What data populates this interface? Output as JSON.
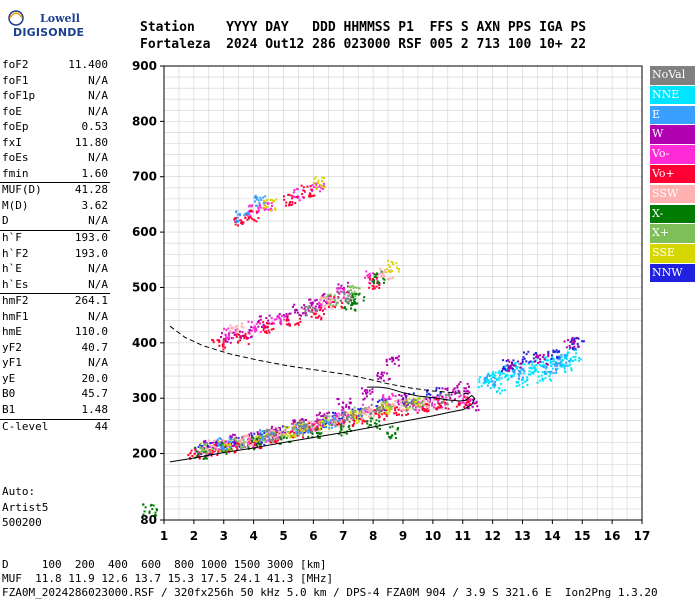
{
  "logo": {
    "line1": "Lowell",
    "line2": "DIGISONDE"
  },
  "header": {
    "line1": "Station    YYYY DAY   DDD HHMMSS P1  FFS S AXN PPS IGA PS",
    "line2": "Fortaleza  2024 Out12 286 023000 RSF 005 2 713 100 10+ 22"
  },
  "params": [
    [
      {
        "label": "foF2",
        "value": "11.400"
      },
      {
        "label": "foF1",
        "value": "N/A"
      },
      {
        "label": "foF1p",
        "value": "N/A"
      },
      {
        "label": "foE",
        "value": "N/A"
      },
      {
        "label": "foEp",
        "value": "0.53"
      },
      {
        "label": "fxI",
        "value": "11.80"
      },
      {
        "label": "foEs",
        "value": "N/A"
      },
      {
        "label": "fmin",
        "value": "1.60"
      }
    ],
    [
      {
        "label": "MUF(D)",
        "value": "41.28"
      },
      {
        "label": "M(D)",
        "value": "3.62"
      },
      {
        "label": "D",
        "value": "N/A"
      }
    ],
    [
      {
        "label": "h`F",
        "value": "193.0"
      },
      {
        "label": "h`F2",
        "value": "193.0"
      },
      {
        "label": "h`E",
        "value": "N/A"
      },
      {
        "label": "h`Es",
        "value": "N/A"
      }
    ],
    [
      {
        "label": "hmF2",
        "value": "264.1"
      },
      {
        "label": "hmF1",
        "value": "N/A"
      },
      {
        "label": "hmE",
        "value": "110.0"
      },
      {
        "label": "yF2",
        "value": "40.7"
      },
      {
        "label": "yF1",
        "value": "N/A"
      },
      {
        "label": "yE",
        "value": "20.0"
      },
      {
        "label": "B0",
        "value": "45.7"
      },
      {
        "label": "B1",
        "value": "1.48"
      }
    ],
    [
      {
        "label": "C-level",
        "value": "44"
      }
    ]
  ],
  "auto": {
    "line1": "Auto:",
    "line2": "Artist5",
    "line3": "500200"
  },
  "legend": [
    {
      "label": "NoVal",
      "color": "#808080"
    },
    {
      "label": "NNE",
      "color": "#00e5ff"
    },
    {
      "label": "E",
      "color": "#3aa0ff"
    },
    {
      "label": "W",
      "color": "#b000b0"
    },
    {
      "label": "Vo-",
      "color": "#ff2bd6"
    },
    {
      "label": "Vo+",
      "color": "#ff0033"
    },
    {
      "label": "SSW",
      "color": "#ffb0b0"
    },
    {
      "label": "X-",
      "color": "#007a00"
    },
    {
      "label": "X+",
      "color": "#7fbf5a"
    },
    {
      "label": "SSE",
      "color": "#d6d600"
    },
    {
      "label": "NNW",
      "color": "#2020e0"
    }
  ],
  "footer": {
    "line1": "D     100  200  400  600  800 1000 1500 3000 [km]",
    "line2": "MUF  11.8 11.9 12.6 13.7 15.3 17.5 24.1 41.3 [MHz]",
    "line3": "FZA0M_2024286023000.RSF / 320fx256h 50 kHz 5.0 km / DPS-4 FZA0M 904 / 3.9 S 321.6 E  Ion2Png 1.3.20"
  },
  "chart_data": {
    "type": "scatter",
    "xlim": [
      1,
      17
    ],
    "ylim": [
      80,
      900
    ],
    "xticks": [
      "1",
      "2",
      "3",
      "4",
      "5",
      "6",
      "7",
      "8",
      "9",
      "10",
      "11",
      "12",
      "13",
      "14",
      "15",
      "16",
      "17"
    ],
    "yticks": [
      "80",
      "200",
      "300",
      "400",
      "500",
      "600",
      "700",
      "800",
      "900"
    ],
    "ytick_values": [
      80,
      200,
      300,
      400,
      500,
      600,
      700,
      800,
      900
    ],
    "grid": true,
    "series": [
      {
        "name": "NNE",
        "color": "#00e5ff",
        "points": [
          [
            11.7,
            330
          ],
          [
            12,
            340
          ],
          [
            12.3,
            345
          ],
          [
            12.6,
            350
          ],
          [
            12.9,
            355
          ],
          [
            13.2,
            355
          ],
          [
            13.5,
            360
          ],
          [
            13.8,
            365
          ],
          [
            14.1,
            365
          ],
          [
            14.4,
            370
          ],
          [
            14.7,
            380
          ],
          [
            12.2,
            320
          ],
          [
            13,
            330
          ],
          [
            13.7,
            340
          ],
          [
            14.5,
            360
          ]
        ]
      },
      {
        "name": "NNW",
        "color": "#2020e0",
        "points": [
          [
            2.3,
            210
          ],
          [
            2.8,
            215
          ],
          [
            3.4,
            222
          ],
          [
            4.1,
            228
          ],
          [
            4.9,
            240
          ],
          [
            5.6,
            250
          ],
          [
            6.2,
            255
          ],
          [
            6.8,
            265
          ],
          [
            7.5,
            275
          ],
          [
            8.3,
            290
          ],
          [
            9.1,
            300
          ],
          [
            10,
            310
          ],
          [
            12.5,
            360
          ],
          [
            13.2,
            375
          ],
          [
            14,
            380
          ],
          [
            14.8,
            400
          ]
        ]
      },
      {
        "name": "W",
        "color": "#b000b0",
        "points": [
          [
            2.5,
            215
          ],
          [
            3.2,
            225
          ],
          [
            4,
            230
          ],
          [
            4.8,
            240
          ],
          [
            5.5,
            255
          ],
          [
            6.3,
            265
          ],
          [
            7,
            290
          ],
          [
            7.8,
            310
          ],
          [
            8.3,
            340
          ],
          [
            8.6,
            370
          ],
          [
            9,
            300
          ],
          [
            9.8,
            290
          ],
          [
            10.5,
            310
          ],
          [
            11,
            320
          ],
          [
            11.3,
            290
          ],
          [
            3.1,
            410
          ],
          [
            3.7,
            420
          ],
          [
            4.3,
            440
          ],
          [
            5,
            445
          ],
          [
            5.5,
            460
          ],
          [
            6,
            470
          ],
          [
            6.5,
            480
          ],
          [
            7,
            500
          ],
          [
            12.7,
            360
          ],
          [
            13.6,
            370
          ],
          [
            14.6,
            400
          ]
        ]
      },
      {
        "name": "Vo-",
        "color": "#ff2bd6",
        "points": [
          [
            2.2,
            205
          ],
          [
            3,
            215
          ],
          [
            3.8,
            222
          ],
          [
            4.6,
            232
          ],
          [
            5.4,
            245
          ],
          [
            6.1,
            255
          ],
          [
            6.9,
            270
          ],
          [
            7.7,
            280
          ],
          [
            8.5,
            300
          ],
          [
            9.3,
            290
          ],
          [
            10.2,
            295
          ],
          [
            11,
            300
          ],
          [
            3.2,
            420
          ],
          [
            4,
            430
          ],
          [
            4.8,
            445
          ],
          [
            6.2,
            470
          ],
          [
            7,
            490
          ],
          [
            7.9,
            520
          ],
          [
            4,
            640
          ],
          [
            4.4,
            650
          ],
          [
            5.5,
            670
          ],
          [
            6.1,
            680
          ]
        ]
      },
      {
        "name": "Vo+",
        "color": "#ff0033",
        "points": [
          [
            2,
            200
          ],
          [
            2.6,
            208
          ],
          [
            3.3,
            214
          ],
          [
            4,
            222
          ],
          [
            4.7,
            230
          ],
          [
            5.4,
            240
          ],
          [
            6,
            250
          ],
          [
            6.8,
            255
          ],
          [
            7.5,
            262
          ],
          [
            8.2,
            270
          ],
          [
            8.9,
            278
          ],
          [
            9.6,
            285
          ],
          [
            10.3,
            290
          ],
          [
            11,
            295
          ],
          [
            2.8,
            400
          ],
          [
            3.6,
            410
          ],
          [
            4.5,
            430
          ],
          [
            5.3,
            440
          ],
          [
            6.1,
            455
          ],
          [
            6.7,
            475
          ],
          [
            8,
            510
          ],
          [
            5.2,
            660
          ],
          [
            5.8,
            675
          ],
          [
            3.5,
            620
          ],
          [
            3.9,
            630
          ]
        ]
      },
      {
        "name": "X-",
        "color": "#007a00",
        "points": [
          [
            0.5,
            100
          ],
          [
            2.2,
            202
          ],
          [
            3,
            210
          ],
          [
            4,
            220
          ],
          [
            5,
            230
          ],
          [
            6,
            240
          ],
          [
            7,
            245
          ],
          [
            8,
            255
          ],
          [
            8.6,
            240
          ],
          [
            7.2,
            470
          ],
          [
            7.5,
            480
          ],
          [
            8.2,
            520
          ]
        ]
      },
      {
        "name": "X+",
        "color": "#7fbf5a",
        "points": [
          [
            2.4,
            212
          ],
          [
            3.5,
            222
          ],
          [
            4.5,
            232
          ],
          [
            5.5,
            245
          ],
          [
            6.5,
            260
          ],
          [
            7.5,
            275
          ],
          [
            8.5,
            285
          ],
          [
            9.5,
            295
          ],
          [
            6.6,
            480
          ],
          [
            7.3,
            495
          ]
        ]
      },
      {
        "name": "SSW",
        "color": "#ffb0b0",
        "points": [
          [
            2.6,
            215
          ],
          [
            3.7,
            226
          ],
          [
            4.8,
            238
          ],
          [
            5.8,
            250
          ],
          [
            6.8,
            262
          ],
          [
            7.8,
            275
          ],
          [
            8.8,
            288
          ],
          [
            9.8,
            295
          ],
          [
            3.4,
            430
          ],
          [
            6.4,
            475
          ],
          [
            8.4,
            525
          ]
        ]
      },
      {
        "name": "SSE",
        "color": "#d6d600",
        "points": [
          [
            3,
            215
          ],
          [
            4.2,
            228
          ],
          [
            5.2,
            242
          ],
          [
            6.3,
            255
          ],
          [
            7.3,
            268
          ],
          [
            8.3,
            282
          ],
          [
            9.3,
            292
          ],
          [
            5.6,
            250
          ],
          [
            6.2,
            690
          ],
          [
            8.6,
            540
          ],
          [
            4.5,
            650
          ]
        ]
      },
      {
        "name": "E",
        "color": "#3aa0ff",
        "points": [
          [
            3,
            220
          ],
          [
            4.4,
            235
          ],
          [
            5.6,
            248
          ],
          [
            6.6,
            258
          ],
          [
            11.9,
            335
          ],
          [
            12.8,
            345
          ],
          [
            13.9,
            355
          ],
          [
            14.3,
            370
          ],
          [
            4.2,
            660
          ],
          [
            3.6,
            630
          ]
        ]
      },
      {
        "name": "NoVal",
        "color": "#808080",
        "points": [
          [
            4.5,
            235
          ],
          [
            5.7,
            250
          ],
          [
            7.1,
            268
          ],
          [
            8.1,
            280
          ],
          [
            9.2,
            290
          ],
          [
            10.4,
            300
          ],
          [
            5.9,
            460
          ],
          [
            7,
            485
          ]
        ]
      }
    ],
    "curves": [
      {
        "name": "profile",
        "style": "solid",
        "points": [
          [
            1.2,
            185
          ],
          [
            2,
            192
          ],
          [
            3,
            202
          ],
          [
            4,
            210
          ],
          [
            5,
            220
          ],
          [
            6,
            229
          ],
          [
            7,
            238
          ],
          [
            8,
            248
          ],
          [
            9,
            258
          ],
          [
            10,
            268
          ],
          [
            10.6,
            275
          ],
          [
            11,
            279
          ],
          [
            11.3,
            288
          ],
          [
            11.4,
            300
          ],
          [
            11.3,
            305
          ],
          [
            11.1,
            296
          ],
          [
            10.9,
            295
          ],
          [
            10.5,
            297
          ],
          [
            10,
            301
          ],
          [
            9.5,
            304
          ],
          [
            9,
            310
          ],
          [
            8.5,
            318
          ],
          [
            8.2,
            320
          ],
          [
            7.8,
            320
          ]
        ]
      },
      {
        "name": "profile-extrapolated",
        "style": "dashed",
        "points": [
          [
            1.2,
            430
          ],
          [
            1.7,
            410
          ],
          [
            2.3,
            395
          ],
          [
            3.2,
            380
          ],
          [
            4.2,
            368
          ],
          [
            5.2,
            358
          ],
          [
            6.2,
            350
          ],
          [
            7.1,
            343
          ],
          [
            7.8,
            335
          ],
          [
            8.5,
            326
          ],
          [
            9.3,
            318
          ],
          [
            10,
            313
          ],
          [
            10.7,
            310
          ],
          [
            11.2,
            308
          ]
        ]
      }
    ]
  }
}
